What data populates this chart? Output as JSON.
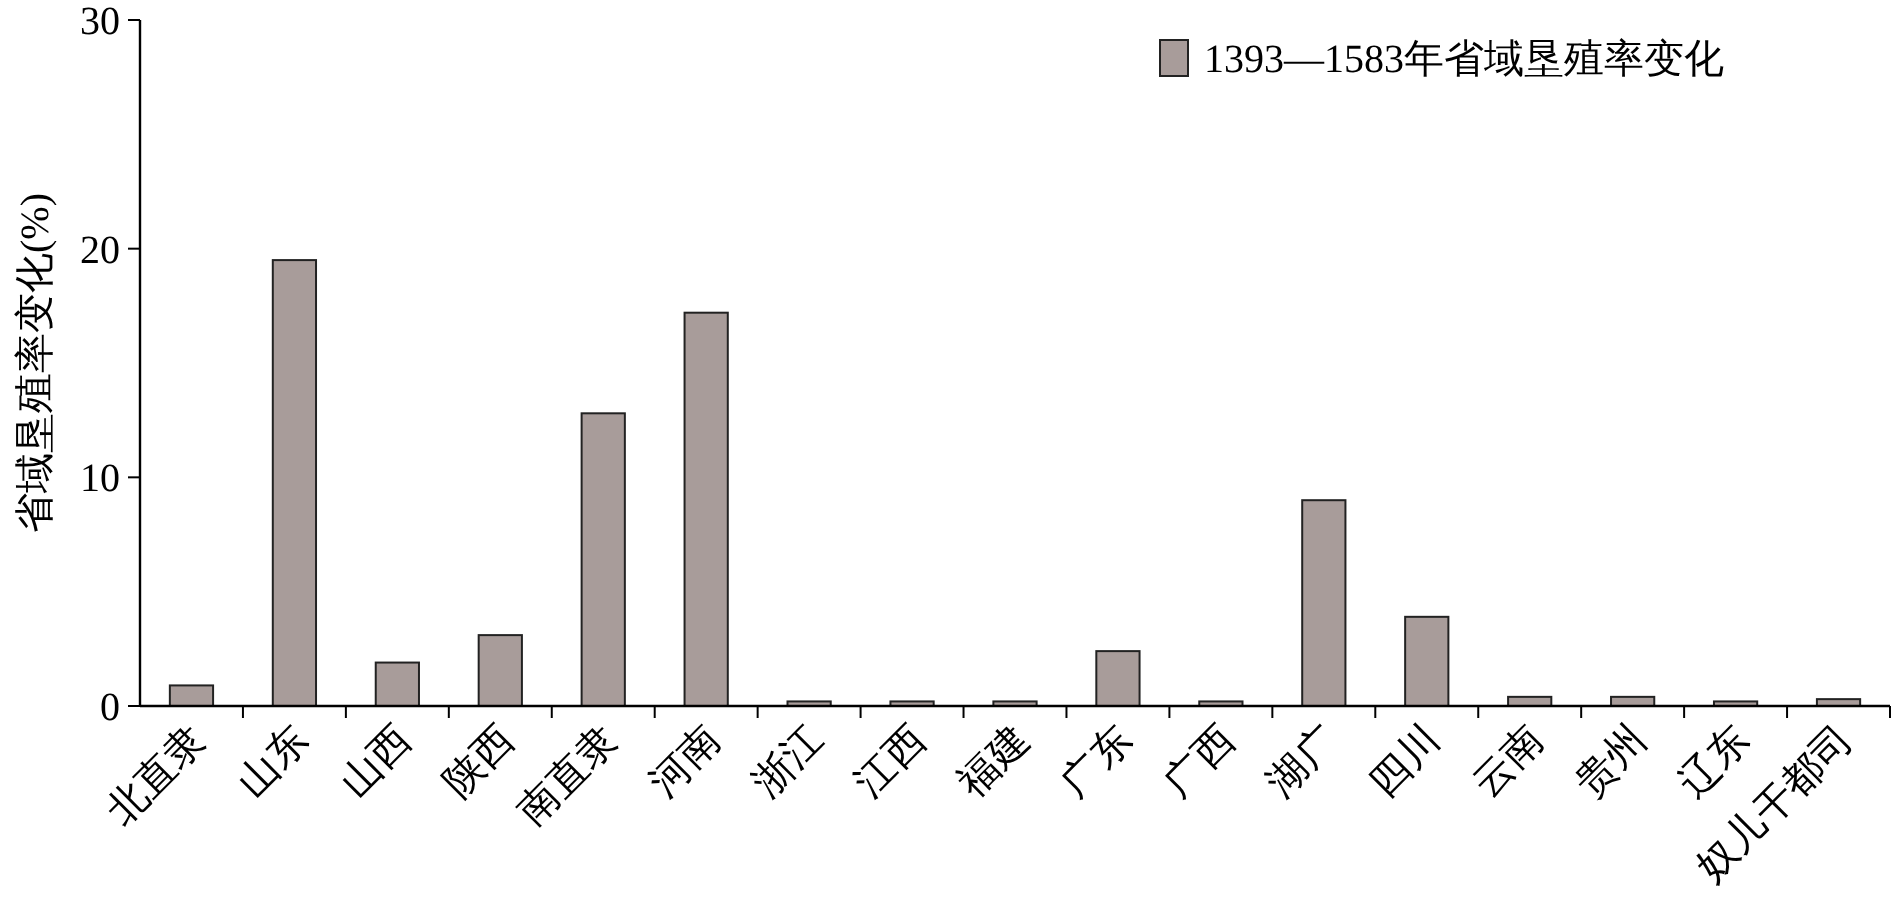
{
  "chart_data": {
    "type": "bar",
    "ylabel": "省域垦殖率变化(%)",
    "categories": [
      "北直隶",
      "山东",
      "山西",
      "陕西",
      "南直隶",
      "河南",
      "浙江",
      "江西",
      "福建",
      "广东",
      "广西",
      "湖广",
      "四川",
      "云南",
      "贵州",
      "辽东",
      "奴儿干都司"
    ],
    "series": [
      {
        "name": "1393—1583年省域垦殖率变化",
        "color": "#a89c9a",
        "values": [
          0.9,
          19.5,
          1.9,
          3.1,
          12.8,
          17.2,
          0.2,
          0.2,
          0.2,
          2.4,
          0.2,
          9.0,
          3.9,
          0.4,
          0.4,
          0.2,
          0.3
        ]
      }
    ],
    "ylim": [
      0,
      30
    ],
    "yticks": [
      0,
      10,
      20,
      30
    ],
    "grid": false,
    "legend": "top right"
  }
}
